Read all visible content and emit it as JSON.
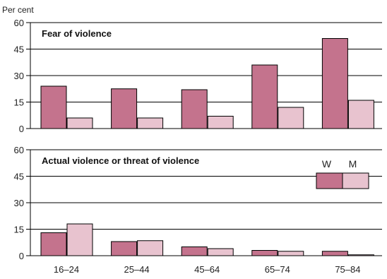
{
  "chart_data": {
    "type": "bar",
    "ylabel": "Per cent",
    "categories": [
      "16–24",
      "25–44",
      "45–64",
      "65–74",
      "75–84"
    ],
    "legend": {
      "placement": "top-right of lower panel",
      "entries": [
        {
          "label": "W",
          "color": "#c4738d"
        },
        {
          "label": "M",
          "color": "#e8c3cf"
        }
      ]
    },
    "panels": [
      {
        "title": "Fear of violence",
        "ylim": [
          0,
          60
        ],
        "yticks": [
          0,
          15,
          30,
          45,
          60
        ],
        "series": [
          {
            "key": "W",
            "color": "#c4738d",
            "values": [
              24,
              22.5,
              22,
              36,
              51
            ]
          },
          {
            "key": "M",
            "color": "#e8c3cf",
            "values": [
              6,
              6,
              7,
              12,
              16
            ]
          }
        ]
      },
      {
        "title": "Actual violence or threat of violence",
        "ylim": [
          0,
          60
        ],
        "yticks": [
          0,
          15,
          30,
          45,
          60
        ],
        "series": [
          {
            "key": "W",
            "color": "#c4738d",
            "values": [
              13,
              8,
              5,
              3,
              2.5
            ]
          },
          {
            "key": "M",
            "color": "#e8c3cf",
            "values": [
              18,
              8.5,
              4,
              2.5,
              0.5
            ]
          }
        ]
      }
    ]
  }
}
